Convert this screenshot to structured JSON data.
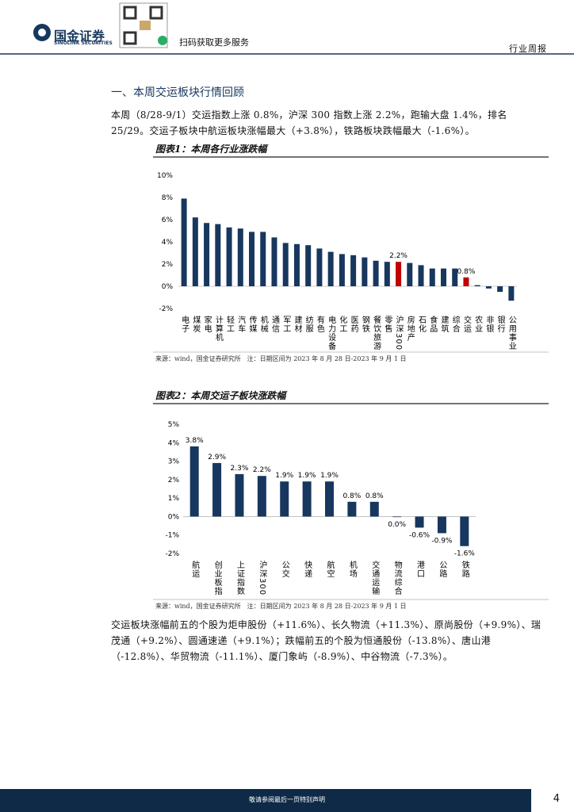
{
  "header": {
    "company_cn": "国金证券",
    "company_en": "SINOLINK SECURITIES",
    "qr_caption": "扫码获取更多服务",
    "report_type": "行业周报"
  },
  "section_title": "一、本周交运板块行情回顾",
  "paragraphs": [
    "本周（8/28-9/1）交运指数上涨 0.8%，沪深 300 指数上涨 2.2%，跑输大盘 1.4%，排名 25/29。交运子板块中航运板块涨幅最大（+3.8%），铁路板块跌幅最大（-1.6%）。",
    "交运板块涨幅前五的个股为炬申股份（+11.6%）、长久物流（+11.3%）、原尚股份（+9.9%）、瑞茂通（+9.2%）、圆通速递（+9.1%）；跌幅前五的个股为恒通股份（-13.8%）、唐山港（-12.8%）、华贸物流（-11.1%）、厦门象屿（-8.9%）、中谷物流（-7.3%）。"
  ],
  "figures": [
    {
      "title": "图表1：本周各行业涨跌幅",
      "source": "来源：wind，国金证券研究所　注：日期区间为 2023 年 8 月 28 日-2023 年 9 月 1 日"
    },
    {
      "title": "图表2：本周交运子板块涨跌幅",
      "source": "来源：wind，国金证券研究所　注：日期区间为 2023 年 8 月 28 日-2023 年 9 月 1 日"
    }
  ],
  "chart_data": [
    {
      "type": "bar",
      "categories": [
        "电子",
        "煤炭",
        "家电",
        "计算机",
        "轻工",
        "汽车",
        "传媒",
        "机械",
        "通信",
        "军工",
        "建材",
        "纺服",
        "有色",
        "电力设备",
        "化工",
        "医药",
        "钢铁",
        "餐饮旅游",
        "零售",
        "沪深300",
        "房地产",
        "石化",
        "食品",
        "建筑",
        "综合",
        "交运",
        "农业",
        "非银",
        "银行",
        "公用事业"
      ],
      "values": [
        7.9,
        6.2,
        5.7,
        5.6,
        5.3,
        5.2,
        4.9,
        4.9,
        4.4,
        3.9,
        3.8,
        3.7,
        3.4,
        3.1,
        2.9,
        2.8,
        2.6,
        2.3,
        2.2,
        2.2,
        2.1,
        1.9,
        1.6,
        1.6,
        1.6,
        0.8,
        0.1,
        -0.2,
        -0.5,
        -1.3
      ],
      "value_labels": [
        null,
        null,
        null,
        null,
        null,
        null,
        null,
        null,
        null,
        null,
        null,
        null,
        null,
        null,
        null,
        null,
        null,
        null,
        null,
        "2.2%",
        null,
        null,
        null,
        null,
        null,
        "0.8%",
        null,
        null,
        null,
        null
      ],
      "colors": [
        "#17375e",
        "#17375e",
        "#17375e",
        "#17375e",
        "#17375e",
        "#17375e",
        "#17375e",
        "#17375e",
        "#17375e",
        "#17375e",
        "#17375e",
        "#17375e",
        "#17375e",
        "#17375e",
        "#17375e",
        "#17375e",
        "#17375e",
        "#17375e",
        "#17375e",
        "#c00000",
        "#17375e",
        "#17375e",
        "#17375e",
        "#17375e",
        "#17375e",
        "#c00000",
        "#17375e",
        "#17375e",
        "#17375e",
        "#17375e"
      ],
      "ylim": [
        -2,
        10
      ],
      "yticks": [
        {
          "value": -2,
          "label": "-2%"
        },
        {
          "value": 0,
          "label": "0%"
        },
        {
          "value": 2,
          "label": "2%"
        },
        {
          "value": 4,
          "label": "4%"
        },
        {
          "value": 6,
          "label": "6%"
        },
        {
          "value": 8,
          "label": "8%"
        },
        {
          "value": 10,
          "label": "10%"
        }
      ],
      "grid": false
    },
    {
      "type": "bar",
      "categories": [
        "航运",
        "创业板指",
        "上证指数",
        "沪深300",
        "公交",
        "快递",
        "航空",
        "机场",
        "交通运输",
        "物流综合",
        "港口",
        "公路",
        "铁路"
      ],
      "values": [
        3.8,
        2.9,
        2.3,
        2.2,
        1.9,
        1.9,
        1.9,
        0.8,
        0.8,
        -0.03,
        -0.6,
        -0.9,
        -1.6
      ],
      "value_labels": [
        "3.8%",
        "2.9%",
        "2.3%",
        "2.2%",
        "1.9%",
        "1.9%",
        "1.9%",
        "0.8%",
        "0.8%",
        "0.0%",
        "-0.6%",
        "-0.9%",
        "-1.6%"
      ],
      "color": "#17375e",
      "ylim": [
        -2,
        5
      ],
      "yticks": [
        {
          "value": -2,
          "label": "-2%"
        },
        {
          "value": -1,
          "label": "-1%"
        },
        {
          "value": 0,
          "label": "0%"
        },
        {
          "value": 1,
          "label": "1%"
        },
        {
          "value": 2,
          "label": "2%"
        },
        {
          "value": 3,
          "label": "3%"
        },
        {
          "value": 4,
          "label": "4%"
        },
        {
          "value": 5,
          "label": "5%"
        }
      ],
      "grid": false
    }
  ],
  "footer": {
    "disclaimer": "敬请参阅最后一页特别声明",
    "page": 4
  }
}
